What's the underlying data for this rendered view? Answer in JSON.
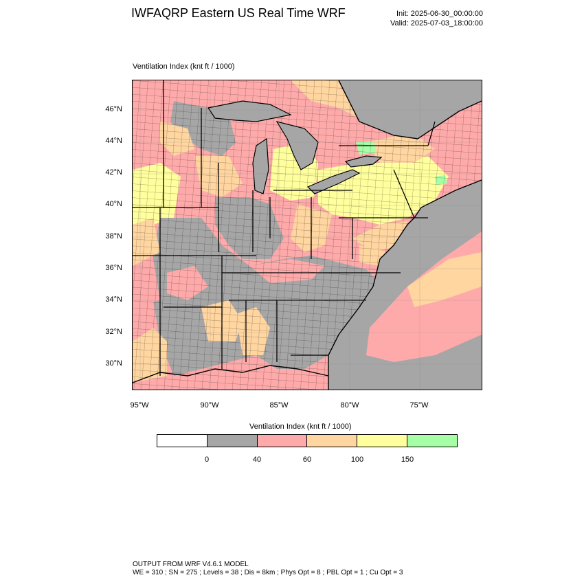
{
  "header": {
    "title": "IWFAQRP Eastern US Real Time WRF",
    "init": "Init: 2025-06-30_00:00:00",
    "valid": "Valid: 2025-07-03_18:00:00"
  },
  "map": {
    "field_label": "Ventilation Index   (knt ft / 1000)",
    "lat_ticks": [
      "46°N",
      "44°N",
      "42°N",
      "40°N",
      "38°N",
      "36°N",
      "34°N",
      "32°N",
      "30°N"
    ],
    "lon_ticks": [
      "95°W",
      "90°W",
      "85°W",
      "80°W",
      "75°W"
    ],
    "colors": {
      "ocean": "#a6a6a6",
      "land_bg": "#ffaaaa",
      "lake": "#a6a6a6"
    }
  },
  "colorbar": {
    "title": "Ventilation Index  (knt ft / 1000)",
    "colors": [
      "#ffffff",
      "#a6a6a6",
      "#ffaaaa",
      "#ffd5a0",
      "#ffff9d",
      "#a6ffa6"
    ],
    "labels": [
      "0",
      "40",
      "60",
      "100",
      "150"
    ]
  },
  "footer": {
    "line1": "OUTPUT FROM WRF V4.6.1 MODEL",
    "line2": "WE = 310 ; SN = 275 ; Levels = 38 ; Dis = 8km ; Phys Opt = 8 ; PBL Opt = 1 ; Cu Opt = 3"
  }
}
